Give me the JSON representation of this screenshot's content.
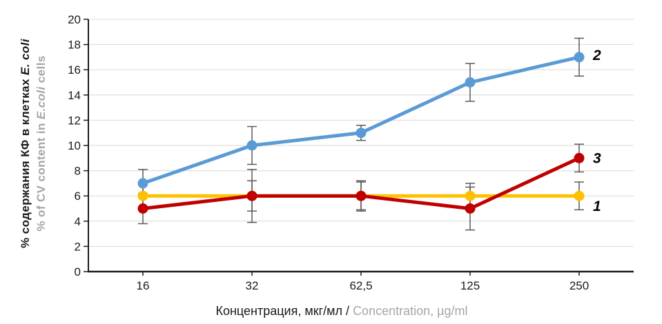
{
  "chart_data": {
    "type": "line",
    "title": "",
    "categories": [
      "16",
      "32",
      "62,5",
      "125",
      "250"
    ],
    "x_axis_title": {
      "ru": "Концентрация, мкг/мл /",
      "en": "Concentration, µg/ml"
    },
    "y_axis_title": {
      "ru_pre": "% содержания КФ в клетках",
      "ru_italic": "E. coli",
      "en_pre": "% of CV content in",
      "en_italic": "E.coli",
      "en_post": "cells"
    },
    "ylim": [
      0,
      20
    ],
    "y_tick_step": 2,
    "grid": true,
    "legend_position": "labels-at-line-ends",
    "series": [
      {
        "name": "1",
        "color": "#FFC000",
        "values": [
          6,
          6,
          6,
          6,
          6
        ],
        "errors": [
          1.0,
          1.2,
          1.1,
          1.0,
          1.1
        ],
        "label_dy": 15
      },
      {
        "name": "2",
        "color": "#5B9BD5",
        "values": [
          7,
          10,
          11,
          15,
          17
        ],
        "errors": [
          1.1,
          1.5,
          0.6,
          1.5,
          1.5
        ],
        "label_dy": -3
      },
      {
        "name": "3",
        "color": "#C00000",
        "values": [
          5,
          6,
          6,
          5,
          9
        ],
        "errors": [
          1.2,
          2.1,
          1.2,
          1.7,
          1.1
        ],
        "label_dy": 0
      }
    ],
    "colors": {
      "grid": "#D9D9D9",
      "axis": "#1a1a1a",
      "error_bar": "#595959",
      "text": "#1a1a1a",
      "secondary_text": "#A6A6A6"
    }
  }
}
